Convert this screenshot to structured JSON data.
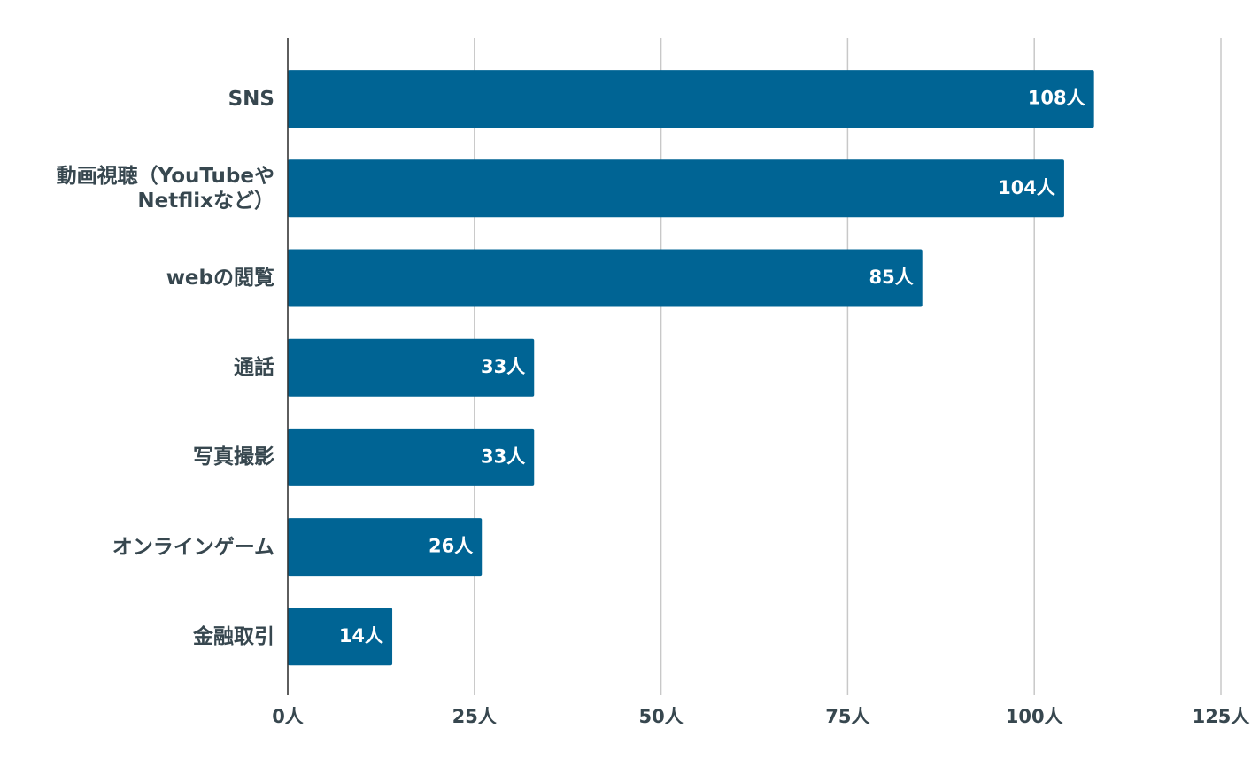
{
  "chart_data": {
    "type": "bar",
    "orientation": "horizontal",
    "categories": [
      "SNS",
      "動画視聴（YouTubeやNetflixなど）",
      "webの閲覧",
      "通話",
      "写真撮影",
      "オンラインゲーム",
      "金融取引"
    ],
    "values": [
      108,
      104,
      85,
      33,
      33,
      26,
      14
    ],
    "value_labels": [
      "108人",
      "104人",
      "85人",
      "33人",
      "33人",
      "26人",
      "14人"
    ],
    "color": "#006494",
    "xlim": [
      0,
      125
    ],
    "xticks": [
      {
        "value": 0,
        "label": "0人"
      },
      {
        "value": 25,
        "label": "25人"
      },
      {
        "value": 50,
        "label": "50人"
      },
      {
        "value": 75,
        "label": "75人"
      },
      {
        "value": 100,
        "label": "100人"
      },
      {
        "value": 125,
        "label": "125人"
      }
    ],
    "grid": true
  }
}
